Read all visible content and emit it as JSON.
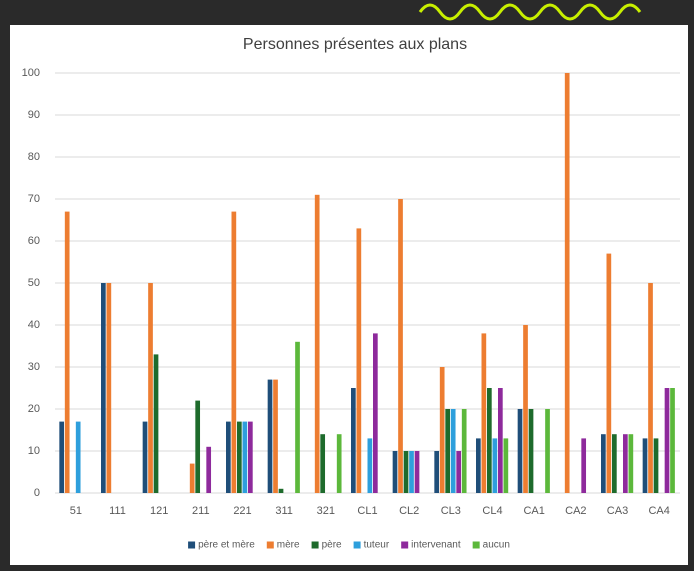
{
  "chart_data": {
    "type": "bar",
    "title": "Personnes présentes aux plans",
    "categories": [
      "51",
      "111",
      "121",
      "211",
      "221",
      "311",
      "321",
      "CL1",
      "CL2",
      "CL3",
      "CL4",
      "CA1",
      "CA2",
      "CA3",
      "CA4"
    ],
    "series": [
      {
        "name": "père et mère",
        "color": "#1f4e79",
        "values": [
          17,
          50,
          17,
          0,
          17,
          27,
          0,
          25,
          10,
          10,
          13,
          20,
          0,
          14,
          13
        ]
      },
      {
        "name": "mère",
        "color": "#ed7d31",
        "values": [
          67,
          50,
          50,
          7,
          67,
          27,
          71,
          63,
          70,
          30,
          38,
          40,
          100,
          57,
          50
        ]
      },
      {
        "name": "père",
        "color": "#1e6b2c",
        "values": [
          0,
          0,
          33,
          22,
          17,
          1,
          14,
          0,
          10,
          20,
          25,
          20,
          0,
          14,
          13
        ]
      },
      {
        "name": "tuteur",
        "color": "#2e9fdc",
        "values": [
          17,
          0,
          0,
          0,
          17,
          0,
          0,
          13,
          10,
          20,
          13,
          0,
          0,
          0,
          0
        ]
      },
      {
        "name": "intervenant",
        "color": "#8e2a9c",
        "values": [
          0,
          0,
          0,
          11,
          17,
          0,
          0,
          38,
          10,
          10,
          25,
          0,
          13,
          14,
          25
        ]
      },
      {
        "name": "aucun",
        "color": "#5cb83b",
        "values": [
          0,
          0,
          0,
          0,
          0,
          36,
          14,
          0,
          0,
          20,
          13,
          20,
          0,
          14,
          25
        ]
      }
    ],
    "ylim": [
      0,
      100
    ],
    "yticks": [
      0,
      10,
      20,
      30,
      40,
      50,
      60,
      70,
      80,
      90,
      100
    ],
    "grid": true,
    "legend": "bottom"
  }
}
